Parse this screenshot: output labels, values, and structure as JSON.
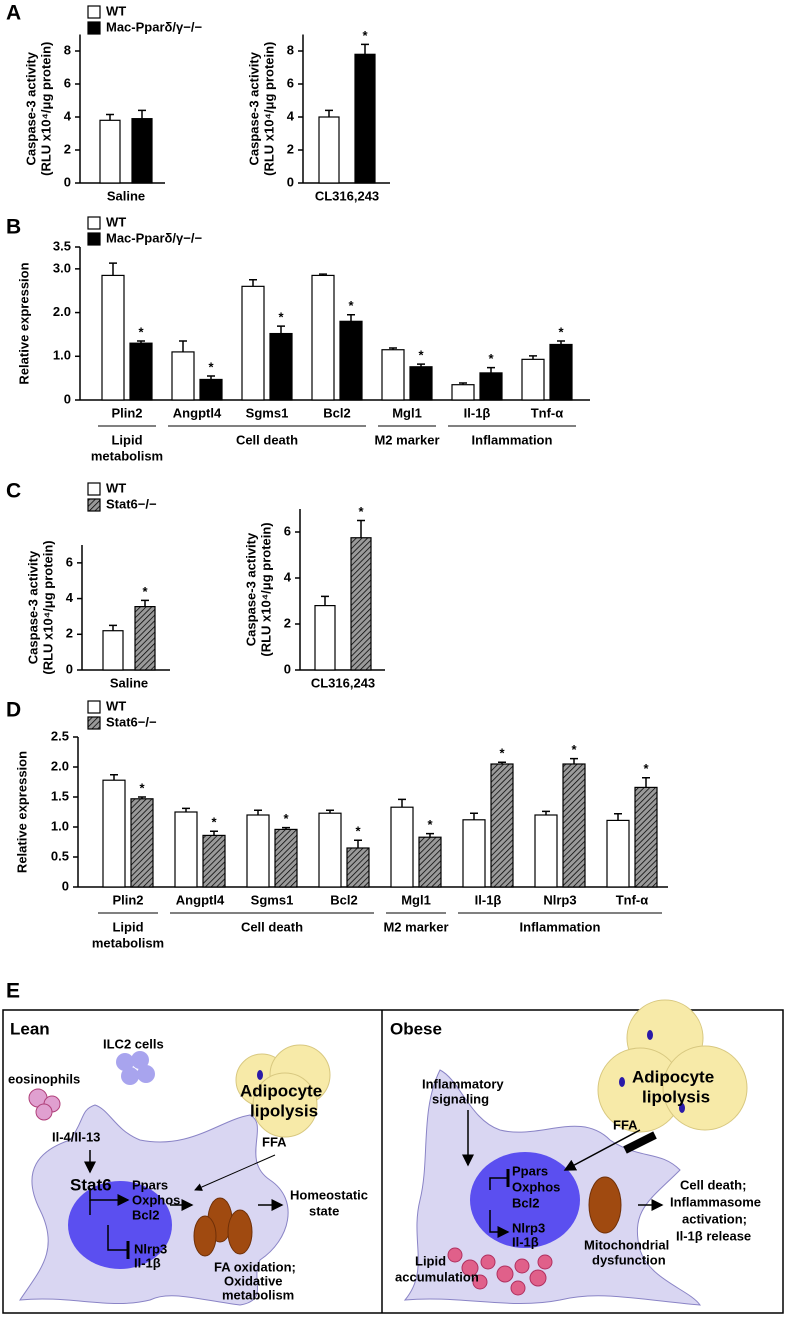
{
  "panel_labels": [
    "A",
    "B",
    "C",
    "D",
    "E"
  ],
  "chart_data": [
    {
      "type": "bar",
      "ylabel": [
        "Caspase-3 activity",
        "(RLU x10⁴/μg protein)"
      ],
      "categories": [
        "Saline"
      ],
      "series": [
        {
          "name": "WT",
          "color": "#ffffff",
          "values": [
            3.8
          ],
          "errors": [
            0.35
          ],
          "significance": [
            null
          ]
        },
        {
          "name": "Mac-Pparδ/γ−/−",
          "color": "#000000",
          "values": [
            3.9
          ],
          "errors": [
            0.5
          ],
          "significance": [
            null
          ]
        }
      ],
      "ylim": [
        0,
        9
      ],
      "yticks": [
        0,
        2,
        4,
        6,
        8
      ],
      "legend": "top-left"
    },
    {
      "type": "bar",
      "ylabel": [
        "Caspase-3 activity",
        "(RLU x10⁴/μg protein)"
      ],
      "categories": [
        "CL316,243"
      ],
      "series": [
        {
          "name": "WT",
          "color": "#ffffff",
          "values": [
            4.0
          ],
          "errors": [
            0.4
          ],
          "significance": [
            null
          ]
        },
        {
          "name": "Mac-Pparδ/γ−/−",
          "color": "#000000",
          "values": [
            7.8
          ],
          "errors": [
            0.6
          ],
          "significance": [
            "*"
          ]
        }
      ],
      "ylim": [
        0,
        9
      ],
      "yticks": [
        0,
        2,
        4,
        6,
        8
      ]
    },
    {
      "type": "bar",
      "ylabel": [
        "Relative expression"
      ],
      "categories": [
        "Plin2",
        "Angptl4",
        "Sgms1",
        "Bcl2",
        "Mgl1",
        "Il-1β",
        "Tnf-α"
      ],
      "series": [
        {
          "name": "WT",
          "color": "#ffffff",
          "values": [
            2.85,
            1.1,
            2.6,
            2.85,
            1.15,
            0.35,
            0.93
          ],
          "errors": [
            0.28,
            0.25,
            0.15,
            0.03,
            0.04,
            0.04,
            0.08
          ],
          "significance": [
            null,
            null,
            null,
            null,
            null,
            null,
            null
          ]
        },
        {
          "name": "Mac-Pparδ/γ−/−",
          "color": "#000000",
          "values": [
            1.3,
            0.47,
            1.52,
            1.8,
            0.76,
            0.62,
            1.27
          ],
          "errors": [
            0.05,
            0.08,
            0.17,
            0.15,
            0.06,
            0.12,
            0.08
          ],
          "significance": [
            "*",
            "*",
            "*",
            "*",
            "*",
            "*",
            "*"
          ]
        }
      ],
      "ylim": [
        0,
        3.5
      ],
      "yticks": [
        0,
        {
          "value": 1,
          "label": "1.0"
        },
        {
          "value": 2,
          "label": "2.0"
        },
        {
          "value": 3,
          "label": "3.0"
        },
        3.5
      ],
      "groups": [
        {
          "label": [
            "Lipid",
            "metabolism"
          ],
          "size": 1
        },
        {
          "label": [
            "Cell death"
          ],
          "size": 3
        },
        {
          "label": [
            "M2 marker"
          ],
          "size": 1
        },
        {
          "label": [
            "Inflammation"
          ],
          "size": 2
        }
      ],
      "legend": "top-left"
    },
    {
      "type": "bar",
      "ylabel": [
        "Caspase-3 activity",
        "(RLU x10⁴/μg protein)"
      ],
      "categories": [
        "Saline"
      ],
      "series": [
        {
          "name": "WT",
          "color": "#ffffff",
          "values": [
            2.2
          ],
          "errors": [
            0.3
          ],
          "significance": [
            null
          ]
        },
        {
          "name": "Stat6−/−",
          "color": "#9a9a9a",
          "fill": "hatch",
          "values": [
            3.55
          ],
          "errors": [
            0.35
          ],
          "significance": [
            "*"
          ]
        }
      ],
      "ylim": [
        0,
        7
      ],
      "yticks": [
        0,
        2,
        4,
        6
      ],
      "legend": "top-left"
    },
    {
      "type": "bar",
      "ylabel": [
        "Caspase-3 activity",
        "(RLU x10⁴/μg protein)"
      ],
      "categories": [
        "CL316,243"
      ],
      "series": [
        {
          "name": "WT",
          "color": "#ffffff",
          "values": [
            2.8
          ],
          "errors": [
            0.4
          ],
          "significance": [
            null
          ]
        },
        {
          "name": "Stat6−/−",
          "color": "#9a9a9a",
          "fill": "hatch",
          "values": [
            5.75
          ],
          "errors": [
            0.75
          ],
          "significance": [
            "*"
          ]
        }
      ],
      "ylim": [
        0,
        7
      ],
      "yticks": [
        0,
        2,
        4,
        6
      ]
    },
    {
      "type": "bar",
      "ylabel": [
        "Relative expression"
      ],
      "categories": [
        "Plin2",
        "Angptl4",
        "Sgms1",
        "Bcl2",
        "Mgl1",
        "Il-1β",
        "Nlrp3",
        "Tnf-α"
      ],
      "series": [
        {
          "name": "WT",
          "color": "#ffffff",
          "values": [
            1.78,
            1.25,
            1.2,
            1.23,
            1.33,
            1.12,
            1.2,
            1.11
          ],
          "errors": [
            0.09,
            0.06,
            0.08,
            0.05,
            0.13,
            0.11,
            0.06,
            0.11
          ],
          "significance": [
            null,
            null,
            null,
            null,
            null,
            null,
            null,
            null
          ]
        },
        {
          "name": "Stat6−/−",
          "color": "#9a9a9a",
          "fill": "hatch",
          "values": [
            1.47,
            0.86,
            0.96,
            0.65,
            0.83,
            2.05,
            2.05,
            1.66
          ],
          "errors": [
            0.03,
            0.07,
            0.03,
            0.13,
            0.06,
            0.03,
            0.09,
            0.16
          ],
          "significance": [
            "*",
            "*",
            "*",
            "*",
            "*",
            "*",
            "*",
            "*"
          ]
        }
      ],
      "ylim": [
        0,
        2.5
      ],
      "yticks": [
        0,
        0.5,
        {
          "value": 1,
          "label": "1.0"
        },
        1.5,
        {
          "value": 2,
          "label": "2.0"
        },
        2.5
      ],
      "groups": [
        {
          "label": [
            "Lipid",
            "metabolism"
          ],
          "size": 1
        },
        {
          "label": [
            "Cell death"
          ],
          "size": 3
        },
        {
          "label": [
            "M2 marker"
          ],
          "size": 1
        },
        {
          "label": [
            "Inflammation"
          ],
          "size": 3
        }
      ],
      "legend": "top-left"
    }
  ],
  "diagram": {
    "lean": {
      "title": "Lean",
      "eosinophils": "eosinophils",
      "ilc2": "ILC2 cells",
      "adipocyte": [
        "Adipocyte",
        "lipolysis"
      ],
      "cytokines": "Il-4/Il-13",
      "ffa": "FFA",
      "stat6": "Stat6",
      "targets": [
        "Ppars",
        "Oxphos",
        "Bcl2"
      ],
      "repressed": [
        "Nlrp3",
        "Il-1β"
      ],
      "mito": [
        "FA oxidation;",
        "Oxidative",
        "metabolism"
      ],
      "outcome": [
        "Homeostatic",
        "state"
      ]
    },
    "obese": {
      "title": "Obese",
      "signal": [
        "Inflammatory",
        "signaling"
      ],
      "adipocyte": [
        "Adipocyte",
        "lipolysis"
      ],
      "ffa": "FFA",
      "targets": [
        "Ppars",
        "Oxphos",
        "Bcl2"
      ],
      "induced": [
        "Nlrp3",
        "Il-1β"
      ],
      "mito": [
        "Mitochondrial",
        "dysfunction"
      ],
      "lipid": [
        "Lipid",
        "accumulation"
      ],
      "outcome": [
        "Cell death;",
        "Inflammasome",
        "activation;",
        "Il-1β release"
      ]
    }
  }
}
